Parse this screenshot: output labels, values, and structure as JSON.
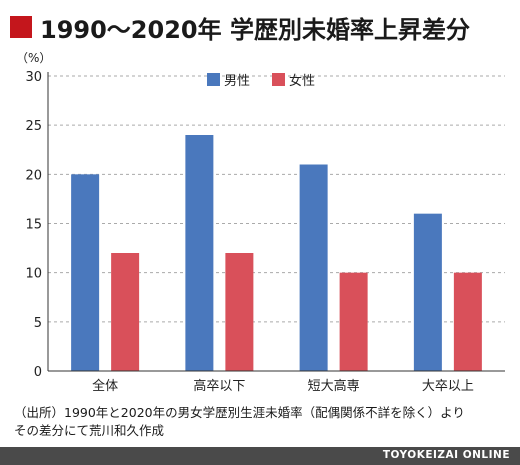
{
  "colors": {
    "title_marker": "#c4161c",
    "male": "#4a78bd",
    "female": "#d9505a",
    "grid": "#aaaaaa",
    "footer_bar": "#4a4a4a"
  },
  "title": "1990〜2020年 学歴別未婚率上昇差分",
  "note": {
    "line1": "（出所）1990年と2020年の男女学歴別生涯未婚率（配偶関係不詳を除く）より",
    "line2": "その差分にて荒川和久作成"
  },
  "credit": "TOYOKEIZAI ONLINE",
  "chart_data": {
    "type": "bar",
    "unit_label": "（%）",
    "categories": [
      "全体",
      "高卒以下",
      "短大高専",
      "大卒以上"
    ],
    "series": [
      {
        "name": "男性",
        "color": "#4a78bd",
        "values": [
          20,
          24,
          21,
          16
        ]
      },
      {
        "name": "女性",
        "color": "#d9505a",
        "values": [
          12,
          12,
          10,
          10
        ]
      }
    ],
    "ylim": [
      0,
      30
    ],
    "yticks": [
      0,
      5,
      10,
      15,
      20,
      25,
      30
    ],
    "grid": true,
    "legend_position": "top-center"
  }
}
